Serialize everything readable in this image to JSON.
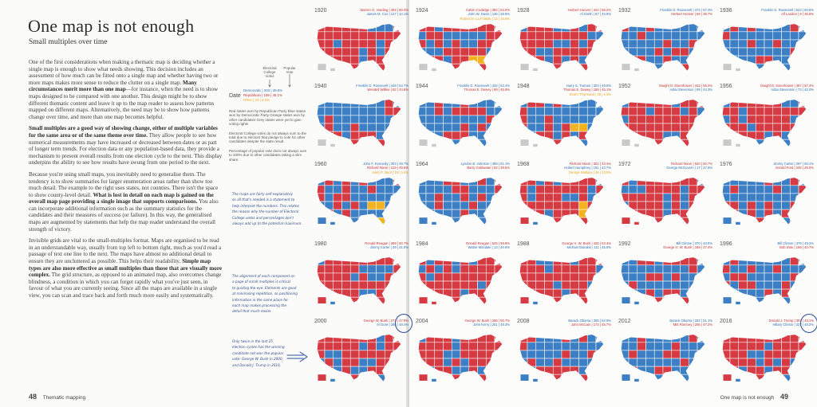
{
  "colors": {
    "dem": "#3d7fc4",
    "rep": "#d63a42",
    "other": "#f2b31e",
    "text_blue": "#2f6fb5",
    "text_red": "#c42f37",
    "text_orange": "#e8a21b",
    "ink": "#2b4c99"
  },
  "left_page": {
    "title": "One map is not enough",
    "subtitle": "Small multiples over time",
    "paragraphs": [
      {
        "parts": [
          {
            "t": "One of the first considerations when making a thematic map is deciding whether a single map is enough to show what needs showing. This decision includes an assessment of how much can be fitted onto a single map and whether having two or more maps makes more sense to reduce the clutter on a single map. ",
            "b": false
          },
          {
            "t": "Many circumstances merit more than one map",
            "b": true
          },
          {
            "t": "—for instance, when the need is to show maps designed to be compared with one another. This design might be to show different thematic content and leave it up to the map reader to assess how patterns mapped on different maps. Alternatively, the need may be to show how patterns change over time, and more than one map becomes helpful.",
            "b": false
          }
        ]
      },
      {
        "parts": [
          {
            "t": "Small multiples are a good way of showing change, either of multiple variables for the same area or of the same theme over time.",
            "b": true
          },
          {
            "t": " They allow people to see how numerical measurements may have increased or decreased between dates or as part of longer term trends. For election data or any population-based data, they provide a mechanism to present overall results from one election cycle to the next. This display underpins the ability to see how results have swung from one period to the next.",
            "b": false
          }
        ]
      },
      {
        "parts": [
          {
            "t": "Because you're using small maps, you inevitably need to generalise them. The tendency is to show summaries for larger enumeration areas rather than show too much detail. The example to the right uses states, not counties. There isn't the space to show county-level detail. ",
            "b": false
          },
          {
            "t": "What is lost in detail on each map is gained on the overall map page providing a single image that supports comparisons.",
            "b": true
          },
          {
            "t": " You also can incorporate additional information such as the summary statistics for the candidates and their measures of success (or failure). In this way, the generalised maps are augmented by statements that help the map reader understand the overall strength of victory.",
            "b": false
          }
        ]
      },
      {
        "parts": [
          {
            "t": "Invisible grids are vital to the small-multiples format. Maps are organised to be read in an understandable way, usually from top left to bottom right, much as you'd read a passage of text one line to the next. The maps have almost no additional detail to ensure they are uncluttered as possible. This helps their readability. ",
            "b": false
          },
          {
            "t": "Simple map types are also more effective as small multiples than those that are visually more complex.",
            "b": true
          },
          {
            "t": " The grid structure, as opposed to an animated map, also overcomes change blindness, a condition in which you can forget rapidly what you've just seen, in favour of what you are currently seeing. Since all the maps are available in a single view, you can scan and trace back and forth much more easily and systematically.",
            "b": false
          }
        ]
      }
    ],
    "footer": {
      "page": "48",
      "section": "Thematic mapping"
    }
  },
  "legend": {
    "hdr_votes": "Electoral College Votes",
    "hdr_popular": "Popular Vote",
    "date": "Date",
    "lines": [
      {
        "t": "Democratic | 303 | 49.8%",
        "c": "blue"
      },
      {
        "t": "Republican | 189 | 45.1%",
        "c": "red"
      },
      {
        "t": "Other | 34 | 3.4%",
        "c": "orange"
      }
    ],
    "notes": [
      "Red states won by Republican Party Blue states won by Democratic Party Orange states won by other candidates Grey states were yet to gain voting rights",
      "Electoral College votes do not always sum to the total due to electors that pledge to vote for other candidates despite the state result.",
      "Percentage of popular vote does not always sum to 100% due to other candidates taking a slim share."
    ]
  },
  "notes": [
    {
      "id": "note1",
      "lines": [
        "The maps are fairly self-explanatory",
        "so all that's needed is a statement to",
        "help interpret the numbers. This relates",
        "the reason why the number of Electoral",
        "College votes and percentages don't",
        "always add up to the potential maximum."
      ]
    },
    {
      "id": "note2",
      "lines": [
        "The alignment of each component on",
        "a page of small multiples is critical",
        "to guiding the eye. Elements are good",
        "at minimising repetition, so positioning",
        "information in the same place for",
        "each map makes processing the",
        "detail that much easier."
      ]
    },
    {
      "id": "note3",
      "lines": [
        "Only twice in the last 25",
        "election cycles has the winning",
        "candidate not won the popular",
        "vote: George W. Bush in 2000,",
        "and Donald J. Trump in 2016."
      ]
    }
  ],
  "elections": [
    {
      "year": "1920",
      "lines": [
        {
          "t": "Warren G. Harding | 404 | 60.3%",
          "c": "red"
        },
        {
          "t": "James M. Cox | 127 | 34.1%",
          "c": "blue"
        }
      ],
      "winner": "rep"
    },
    {
      "year": "1924",
      "lines": [
        {
          "t": "Calvin Coolidge | 382 | 54.0%",
          "c": "red"
        },
        {
          "t": "John W. Davis | 136 | 28.8%",
          "c": "blue"
        },
        {
          "t": "Robert M. La Follette | 13 | 16.6%",
          "c": "orange"
        }
      ],
      "winner": "rep"
    },
    {
      "year": "1928",
      "lines": [
        {
          "t": "Herbert Hoover | 444 | 58.2%",
          "c": "red"
        },
        {
          "t": "Al Smith | 87 | 40.8%",
          "c": "blue"
        }
      ],
      "winner": "rep"
    },
    {
      "year": "1932",
      "lines": [
        {
          "t": "Franklin D. Roosevelt | 472 | 57.4%",
          "c": "blue"
        },
        {
          "t": "Herbert Hoover | 59 | 39.7%",
          "c": "red"
        }
      ],
      "winner": "dem"
    },
    {
      "year": "1936",
      "lines": [
        {
          "t": "Franklin D. Roosevelt | 523 | 60.8%",
          "c": "blue"
        },
        {
          "t": "Alf Landon | 8 | 36.5%",
          "c": "red"
        }
      ],
      "winner": "dem"
    },
    {
      "year": "1940",
      "lines": [
        {
          "t": "Franklin D. Roosevelt | 449 | 54.7%",
          "c": "blue"
        },
        {
          "t": "Wendell Willkie | 82 | 44.8%",
          "c": "red"
        }
      ],
      "winner": "dem"
    },
    {
      "year": "1944",
      "lines": [
        {
          "t": "Franklin D. Roosevelt | 432 | 53.4%",
          "c": "blue"
        },
        {
          "t": "Thomas E. Dewey | 99 | 45.9%",
          "c": "red"
        }
      ],
      "winner": "dem"
    },
    {
      "year": "1948",
      "lines": [
        {
          "t": "Harry S. Truman | 303 | 49.6%",
          "c": "blue"
        },
        {
          "t": "Thomas E. Dewey | 189 | 45.1%",
          "c": "red"
        },
        {
          "t": "Strom Thurmond | 39 | 2.4%",
          "c": "orange"
        }
      ],
      "winner": "dem"
    },
    {
      "year": "1952",
      "lines": [
        {
          "t": "Dwight D. Eisenhower | 442 | 55.2%",
          "c": "red"
        },
        {
          "t": "Adlai Stevenson | 89 | 44.3%",
          "c": "blue"
        }
      ],
      "winner": "rep"
    },
    {
      "year": "1956",
      "lines": [
        {
          "t": "Dwight D. Eisenhower | 457 | 57.4%",
          "c": "red"
        },
        {
          "t": "Adlai Stevenson | 73 | 42.0%",
          "c": "blue"
        }
      ],
      "winner": "rep"
    },
    {
      "year": "1960",
      "lines": [
        {
          "t": "John F. Kennedy | 303 | 49.7%",
          "c": "blue"
        },
        {
          "t": "Richard Nixon | 219 | 49.6%",
          "c": "red"
        },
        {
          "t": "Harry F. Byrd | 15 | 0.4%",
          "c": "orange"
        }
      ],
      "winner": "dem"
    },
    {
      "year": "1964",
      "lines": [
        {
          "t": "Lyndon B. Johnson | 486 | 61.1%",
          "c": "blue"
        },
        {
          "t": "Barry Goldwater | 52 | 38.5%",
          "c": "red"
        }
      ],
      "winner": "dem"
    },
    {
      "year": "1968",
      "lines": [
        {
          "t": "Richard Nixon | 301 | 43.4%",
          "c": "red"
        },
        {
          "t": "Hubert Humphrey | 191 | 42.7%",
          "c": "blue"
        },
        {
          "t": "George Wallace | 46 | 13.5%",
          "c": "orange"
        }
      ],
      "winner": "rep"
    },
    {
      "year": "1972",
      "lines": [
        {
          "t": "Richard Nixon | 520 | 60.7%",
          "c": "red"
        },
        {
          "t": "George McGovern | 17 | 37.5%",
          "c": "blue"
        }
      ],
      "winner": "rep"
    },
    {
      "year": "1976",
      "lines": [
        {
          "t": "Jimmy Carter | 297 | 50.1%",
          "c": "blue"
        },
        {
          "t": "Gerald Ford | 240 | 48.0%",
          "c": "red"
        }
      ],
      "winner": "dem"
    },
    {
      "year": "1980",
      "lines": [
        {
          "t": "Ronald Reagan | 489 | 50.7%",
          "c": "red"
        },
        {
          "t": "Jimmy Carter | 49 | 41.0%",
          "c": "blue"
        }
      ],
      "winner": "rep"
    },
    {
      "year": "1984",
      "lines": [
        {
          "t": "Ronald Reagan | 525 | 58.8%",
          "c": "red"
        },
        {
          "t": "Walter Mondale | 13 | 40.6%",
          "c": "blue"
        }
      ],
      "winner": "rep"
    },
    {
      "year": "1988",
      "lines": [
        {
          "t": "George H. W. Bush | 426 | 53.4%",
          "c": "red"
        },
        {
          "t": "Michael Dukakis | 111 | 45.6%",
          "c": "blue"
        }
      ],
      "winner": "rep"
    },
    {
      "year": "1992",
      "lines": [
        {
          "t": "Bill Clinton | 370 | 43.0%",
          "c": "blue"
        },
        {
          "t": "George H. W. Bush | 168 | 37.4%",
          "c": "red"
        }
      ],
      "winner": "dem"
    },
    {
      "year": "1996",
      "lines": [
        {
          "t": "Bill Clinton | 379 | 49.2%",
          "c": "blue"
        },
        {
          "t": "Bob Dole | 159 | 40.7%",
          "c": "red"
        }
      ],
      "winner": "dem"
    },
    {
      "year": "2000",
      "lines": [
        {
          "t": "George W. Bush | 271 | 47.9%",
          "c": "red"
        },
        {
          "t": "Al Gore | 266 | 48.4%",
          "c": "blue"
        }
      ],
      "winner": "rep"
    },
    {
      "year": "2004",
      "lines": [
        {
          "t": "George W. Bush | 286 | 50.7%",
          "c": "red"
        },
        {
          "t": "John Kerry | 251 | 48.3%",
          "c": "blue"
        }
      ],
      "winner": "rep"
    },
    {
      "year": "2008",
      "lines": [
        {
          "t": "Barack Obama | 365 | 52.9%",
          "c": "blue"
        },
        {
          "t": "John McCain | 173 | 45.7%",
          "c": "red"
        }
      ],
      "winner": "dem"
    },
    {
      "year": "2012",
      "lines": [
        {
          "t": "Barack Obama | 332 | 51.1%",
          "c": "blue"
        },
        {
          "t": "Mitt Romney | 206 | 47.2%",
          "c": "red"
        }
      ],
      "winner": "dem"
    },
    {
      "year": "2016",
      "lines": [
        {
          "t": "Donald J. Trump | 304 | 46.1%",
          "c": "red"
        },
        {
          "t": "Hillary Clinton | 227 | 48.2%",
          "c": "blue"
        }
      ],
      "winner": "rep"
    }
  ],
  "right_footer": {
    "section": "One map is not enough",
    "page": "49"
  }
}
